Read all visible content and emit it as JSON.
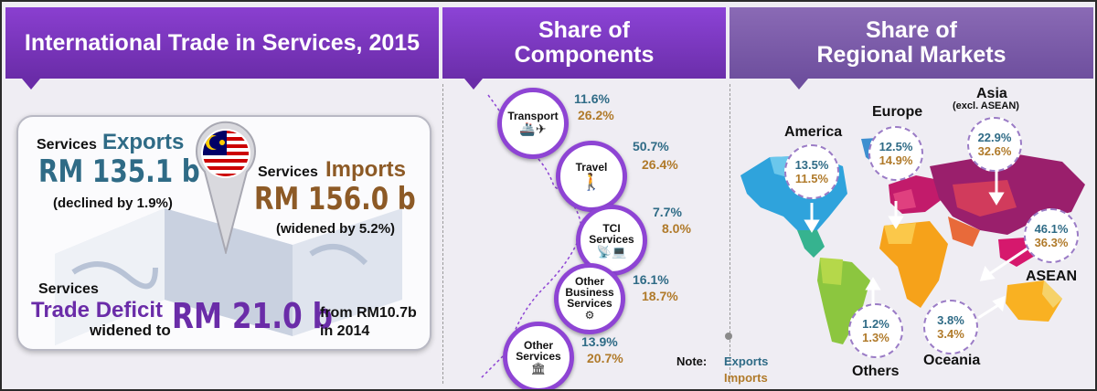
{
  "header": {
    "title_main": "International Trade in Services, 2015",
    "components_line1": "Share of",
    "components_line2": "Components",
    "markets_line1": "Share of",
    "markets_line2": "Regional Markets"
  },
  "summary": {
    "exports_prefix": "Services",
    "exports_word": "Exports",
    "exports_value": "RM 135.1 b",
    "exports_note": "(declined  by 1.9%)",
    "imports_prefix": "Services",
    "imports_word": "Imports",
    "imports_value": "RM 156.0 b",
    "imports_note": "(widened  by 5.2%)",
    "deficit_prefix": "Services",
    "deficit_word": "Trade Deficit",
    "deficit_widened": "widened to",
    "deficit_value": "RM 21.0 b",
    "deficit_from": "from RM10.7b",
    "deficit_year": "in 2014"
  },
  "colors": {
    "exports": "#2f6b86",
    "imports": "#b07a2a",
    "accent": "#8e44d4"
  },
  "components": [
    {
      "label": "Transport",
      "exports": "11.6%",
      "imports": "26.2%",
      "icon": "ship-truck-plane-icon"
    },
    {
      "label": "Travel",
      "exports": "50.7%",
      "imports": "26.4%",
      "icon": "traveler-luggage-icon"
    },
    {
      "label": "TCI Services",
      "exports": "7.7%",
      "imports": "8.0%",
      "icon": "satellite-computer-icon"
    },
    {
      "label": "Other Business Services",
      "exports": "16.1%",
      "imports": "18.7%",
      "icon": "tower-gears-icon"
    },
    {
      "label": "Other Services",
      "exports": "13.9%",
      "imports": "20.7%",
      "icon": "building-people-icon"
    }
  ],
  "note": {
    "label": "Note:",
    "exports": "Exports",
    "imports": "Imports"
  },
  "markets": [
    {
      "name": "America",
      "exports": "13.5%",
      "imports": "11.5%"
    },
    {
      "name": "Europe",
      "exports": "12.5%",
      "imports": "14.9%"
    },
    {
      "name": "Asia",
      "subname": "(excl. ASEAN)",
      "exports": "22.9%",
      "imports": "32.6%"
    },
    {
      "name": "ASEAN",
      "exports": "46.1%",
      "imports": "36.3%"
    },
    {
      "name": "Others",
      "exports": "1.2%",
      "imports": "1.3%"
    },
    {
      "name": "Oceania",
      "exports": "3.8%",
      "imports": "3.4%"
    }
  ]
}
